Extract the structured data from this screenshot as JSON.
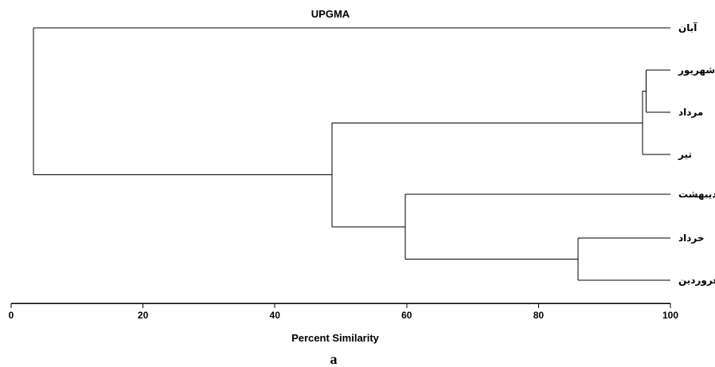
{
  "chart_data": {
    "type": "dendrogram",
    "title": "UPGMA",
    "xlabel": "Percent Similarity",
    "xlim": [
      0,
      100
    ],
    "xticks": [
      0,
      20,
      40,
      60,
      80,
      100
    ],
    "leaves": [
      "آبان",
      "شهریور",
      "مرداد",
      "تیر",
      "ردیبهشت",
      "خرداد",
      "فروردین"
    ],
    "merges": [
      {
        "children": [
          1,
          2
        ],
        "similarity": 96.3
      },
      {
        "children": [
          "m0",
          3
        ],
        "similarity": 95.8
      },
      {
        "children": [
          5,
          6
        ],
        "similarity": 86.0
      },
      {
        "children": [
          4,
          "m2"
        ],
        "similarity": 59.8
      },
      {
        "children": [
          "m1",
          "m3"
        ],
        "similarity": 48.7
      },
      {
        "children": [
          0,
          "m4"
        ],
        "similarity": 3.4
      }
    ]
  },
  "caption": "a"
}
